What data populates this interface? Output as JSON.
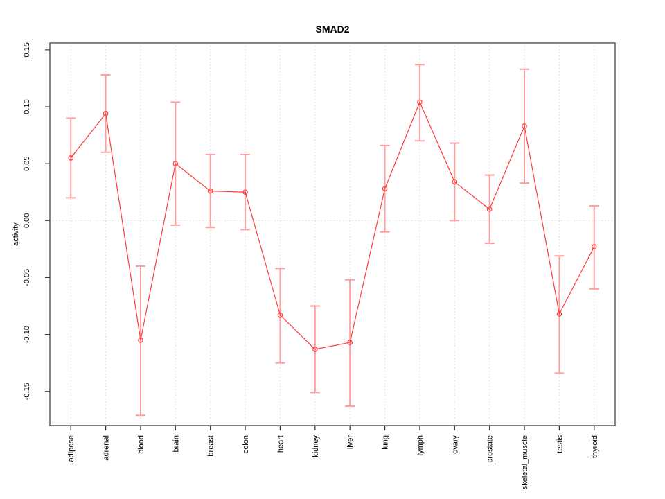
{
  "chart_data": {
    "type": "line",
    "title": "SMAD2",
    "xlabel": "",
    "ylabel": "activity",
    "legend": "none",
    "point_style": "open-circle",
    "grid": {
      "vertical": "dotted line at every category",
      "horizontal": "dotted line at 0.00 only"
    },
    "categories": [
      "adipose",
      "adrenal",
      "blood",
      "brain",
      "breast",
      "colon",
      "heart",
      "kidney",
      "liver",
      "lung",
      "lymph",
      "ovary",
      "prostate",
      "skeletal_muscle",
      "testis",
      "thyroid"
    ],
    "series": [
      {
        "name": "activity",
        "values": [
          0.055,
          0.094,
          -0.105,
          0.05,
          0.026,
          0.025,
          -0.083,
          -0.113,
          -0.107,
          0.028,
          0.104,
          0.034,
          0.01,
          0.083,
          -0.082,
          -0.023
        ],
        "error_upper": [
          0.09,
          0.128,
          -0.04,
          0.104,
          0.058,
          0.058,
          -0.042,
          -0.075,
          -0.052,
          0.066,
          0.137,
          0.068,
          0.04,
          0.133,
          -0.031,
          0.013
        ],
        "error_lower": [
          0.02,
          0.06,
          -0.171,
          -0.004,
          -0.006,
          -0.008,
          -0.125,
          -0.151,
          -0.163,
          -0.01,
          0.07,
          0.0,
          -0.02,
          0.033,
          -0.134,
          -0.06
        ]
      }
    ],
    "yticks": {
      "values": [
        -0.15,
        -0.1,
        -0.05,
        0.0,
        0.05,
        0.1,
        0.15
      ],
      "labels": [
        "-0.15",
        "-0.10",
        "-0.05",
        "0.00",
        "0.05",
        "0.10",
        "0.15"
      ]
    },
    "ylim": [
      -0.18,
      0.156
    ],
    "colors": {
      "series": "#ff3b3b",
      "error_bar": "#ff9e9e",
      "box": "#666666",
      "tick": "#333333",
      "grid": "#d9d9d9",
      "text": "#000000",
      "background": "#ffffff"
    }
  }
}
